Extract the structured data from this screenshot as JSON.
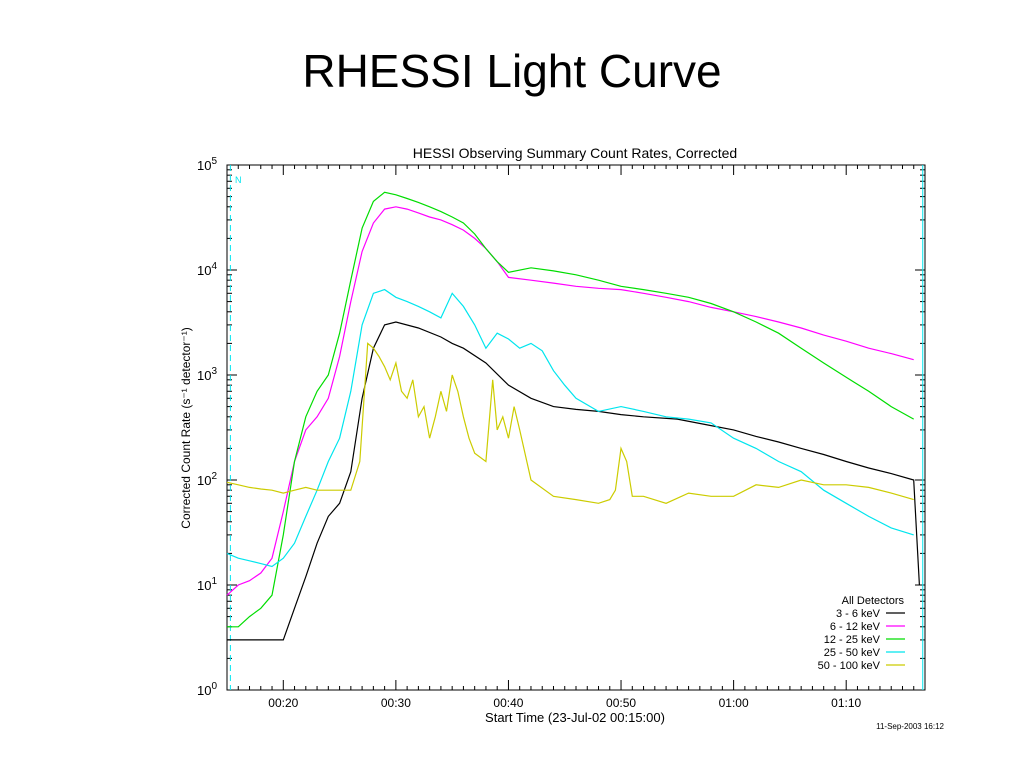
{
  "slide": {
    "title": "RHESSI Light Curve"
  },
  "chart_data": {
    "type": "line",
    "title": "HESSI Observing Summary Count Rates, Corrected",
    "xlabel": "Start Time (23-Jul-02 00:15:00)",
    "ylabel": "Corrected Count Rate (s⁻¹ detector⁻¹)",
    "y_scale": "log",
    "ylim": [
      1,
      100000
    ],
    "xlim_minutes": [
      15,
      77
    ],
    "x_ticks": [
      {
        "m": 20,
        "label": "00:20"
      },
      {
        "m": 30,
        "label": "00:30"
      },
      {
        "m": 40,
        "label": "00:40"
      },
      {
        "m": 50,
        "label": "00:50"
      },
      {
        "m": 60,
        "label": "01:00"
      },
      {
        "m": 70,
        "label": "01:10"
      }
    ],
    "y_ticks": [
      {
        "v": 1,
        "base": "10",
        "exp": "0"
      },
      {
        "v": 10,
        "base": "10",
        "exp": "1"
      },
      {
        "v": 100,
        "base": "10",
        "exp": "2"
      },
      {
        "v": 1000,
        "base": "10",
        "exp": "3"
      },
      {
        "v": 10000,
        "base": "10",
        "exp": "4"
      },
      {
        "v": 100000,
        "base": "10",
        "exp": "5"
      }
    ],
    "legend_title": "All Detectors",
    "legend_position": "bottom-right",
    "footnote": "11-Sep-2003 16:12",
    "marker_label": "N",
    "series": [
      {
        "name": "3 - 6 keV",
        "color": "#000000",
        "x": [
          15,
          18,
          19,
          20,
          21,
          22,
          23,
          24,
          25,
          26,
          27,
          28,
          29,
          30,
          32,
          34,
          35,
          36,
          38,
          40,
          42,
          44,
          46,
          48,
          50,
          52,
          55,
          58,
          60,
          62,
          64,
          66,
          68,
          70,
          72,
          74,
          76,
          76.5
        ],
        "y": [
          3,
          3,
          3,
          3,
          6,
          12,
          25,
          45,
          60,
          120,
          600,
          1800,
          3000,
          3200,
          2800,
          2300,
          2000,
          1800,
          1300,
          800,
          600,
          500,
          470,
          450,
          420,
          400,
          380,
          330,
          300,
          260,
          230,
          200,
          175,
          150,
          130,
          115,
          100,
          10
        ]
      },
      {
        "name": "6 - 12 keV",
        "color": "#ff00ff",
        "x": [
          15,
          16,
          17,
          18,
          19,
          20,
          21,
          22,
          23,
          24,
          25,
          26,
          27,
          28,
          29,
          30,
          31,
          32,
          33,
          34,
          35,
          36,
          37,
          38,
          39,
          40,
          42,
          44,
          46,
          48,
          50,
          52,
          54,
          56,
          58,
          60,
          62,
          64,
          66,
          68,
          70,
          72,
          74,
          76
        ],
        "y": [
          8,
          10,
          11,
          13,
          18,
          50,
          150,
          300,
          400,
          600,
          1500,
          5000,
          15000,
          28000,
          38000,
          40000,
          38000,
          35000,
          32000,
          30000,
          27000,
          24000,
          20000,
          16000,
          12000,
          8500,
          8000,
          7500,
          7000,
          6700,
          6500,
          6000,
          5500,
          5000,
          4400,
          4000,
          3600,
          3200,
          2800,
          2400,
          2100,
          1800,
          1600,
          1400
        ]
      },
      {
        "name": "12 - 25 keV",
        "color": "#00dd00",
        "x": [
          15,
          16,
          17,
          18,
          19,
          20,
          21,
          22,
          23,
          24,
          25,
          26,
          27,
          28,
          29,
          30,
          31,
          32,
          33,
          34,
          35,
          36,
          37,
          38,
          39,
          40,
          42,
          44,
          46,
          48,
          50,
          52,
          54,
          56,
          58,
          60,
          62,
          64,
          66,
          68,
          70,
          72,
          74,
          76
        ],
        "y": [
          4,
          4,
          5,
          6,
          8,
          30,
          150,
          400,
          700,
          1000,
          2500,
          8000,
          25000,
          45000,
          55000,
          52000,
          48000,
          44000,
          40000,
          36000,
          32000,
          28000,
          22000,
          16000,
          12000,
          9500,
          10500,
          9800,
          9000,
          8000,
          7000,
          6500,
          6000,
          5500,
          4800,
          4000,
          3200,
          2500,
          1800,
          1300,
          950,
          700,
          500,
          380
        ]
      },
      {
        "name": "25 - 50 keV",
        "color": "#00e5ee",
        "x": [
          15,
          16,
          17,
          18,
          19,
          20,
          21,
          22,
          23,
          24,
          25,
          26,
          27,
          28,
          29,
          30,
          31,
          32,
          33,
          34,
          35,
          36,
          37,
          38,
          39,
          40,
          41,
          42,
          43,
          44,
          45,
          46,
          48,
          50,
          52,
          54,
          56,
          58,
          60,
          62,
          64,
          66,
          68,
          70,
          72,
          74,
          76
        ],
        "y": [
          20,
          18,
          17,
          16,
          15,
          18,
          25,
          45,
          80,
          150,
          250,
          700,
          3000,
          6000,
          6500,
          5500,
          5000,
          4500,
          4000,
          3500,
          6000,
          4500,
          3000,
          1800,
          2500,
          2200,
          1800,
          2000,
          1700,
          1100,
          800,
          600,
          450,
          500,
          450,
          400,
          380,
          350,
          250,
          200,
          150,
          120,
          80,
          60,
          45,
          35,
          30
        ]
      },
      {
        "name": "50 - 100 keV",
        "color": "#cccc00",
        "x": [
          15,
          16,
          17,
          18,
          19,
          20,
          21,
          22,
          23,
          24,
          25,
          26,
          26.8,
          27.5,
          28,
          28.5,
          29,
          29.5,
          30,
          30.5,
          31,
          31.5,
          32,
          32.5,
          33,
          33.5,
          34,
          34.5,
          35,
          35.5,
          36,
          36.5,
          37,
          38,
          38.6,
          39,
          39.5,
          40,
          40.5,
          41,
          42,
          44,
          46,
          48,
          49,
          49.5,
          50,
          50.5,
          51,
          52,
          54,
          56,
          58,
          60,
          62,
          64,
          66,
          68,
          70,
          72,
          74,
          76
        ],
        "y": [
          95,
          90,
          85,
          82,
          80,
          75,
          80,
          85,
          80,
          80,
          80,
          80,
          150,
          2000,
          1800,
          1500,
          1200,
          900,
          1300,
          700,
          600,
          900,
          400,
          500,
          250,
          400,
          700,
          450,
          1000,
          700,
          400,
          250,
          180,
          150,
          900,
          300,
          400,
          250,
          500,
          300,
          100,
          70,
          65,
          60,
          65,
          80,
          200,
          150,
          70,
          70,
          60,
          75,
          70,
          70,
          90,
          85,
          100,
          90,
          90,
          85,
          75,
          65
        ]
      }
    ]
  }
}
